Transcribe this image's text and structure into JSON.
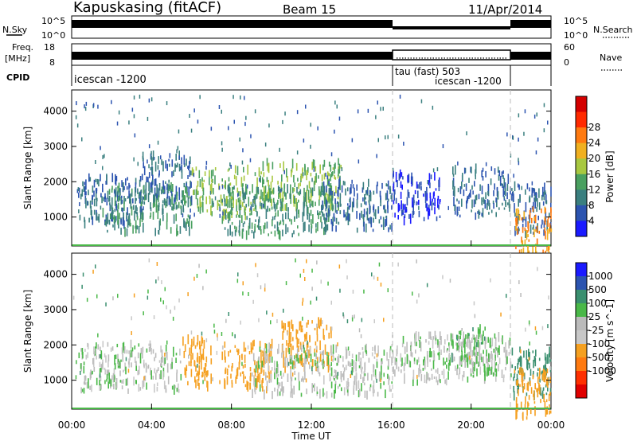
{
  "header": {
    "station": "Kapuskasing (fitACF)",
    "beam": "Beam 15",
    "date": "11/Apr/2014"
  },
  "status_panels": {
    "nsky_label": "N.Sky",
    "nsky_ticks": [
      "10^5",
      "10^0"
    ],
    "nsearch_label": "N.Search",
    "nsearch_ticks": [
      "10^5",
      "10^0"
    ],
    "freq_label": "Freq.",
    "freq_unit": "[MHz]",
    "freq_ticks": [
      "18",
      "8"
    ],
    "nave_label": "Nave",
    "nave_ticks": [
      "60",
      "0"
    ],
    "cpid_label": "CPID",
    "cpid_segments": [
      {
        "start_hour": 0,
        "end_hour": 16,
        "label": "icescan -1200"
      },
      {
        "start_hour": 16,
        "end_hour": 22,
        "label": "tau (fast) 503"
      },
      {
        "start_hour": 16,
        "end_hour": 22,
        "label": "icescan -1200"
      }
    ]
  },
  "chart_data": [
    {
      "type": "heatmap",
      "title": "",
      "xlabel": "Time UT",
      "ylabel": "Slant Range [km]",
      "xlim": [
        0,
        24
      ],
      "ylim": [
        180,
        4600
      ],
      "x_ticks": [
        "00:00",
        "04:00",
        "08:00",
        "12:00",
        "16:00",
        "20:00",
        "00:00"
      ],
      "y_ticks": [
        1000,
        2000,
        3000,
        4000
      ],
      "colorbar": {
        "label": "Power [dB]",
        "ticks": [
          4,
          8,
          12,
          16,
          20,
          24,
          28
        ],
        "colors": [
          "#1a1aff",
          "#2c54b0",
          "#3a7f7f",
          "#4aa060",
          "#a8c840",
          "#f0b020",
          "#ff7a10",
          "#ff2a00",
          "#d40000"
        ]
      },
      "regions": [
        {
          "start_hour": 0.3,
          "end_hour": 3.5,
          "range_km": 1450,
          "value": 8
        },
        {
          "start_hour": 3.5,
          "end_hour": 6.0,
          "range_km": 2100,
          "value": 8
        },
        {
          "start_hour": 1.5,
          "end_hour": 6.0,
          "range_km": 1200,
          "value": 12
        },
        {
          "start_hour": 6.0,
          "end_hour": 9.5,
          "range_km": 1700,
          "value": 16
        },
        {
          "start_hour": 9.5,
          "end_hour": 13.5,
          "range_km": 1900,
          "value": 16
        },
        {
          "start_hour": 7.5,
          "end_hour": 13.0,
          "range_km": 1150,
          "value": 12
        },
        {
          "start_hour": 12.5,
          "end_hour": 16.0,
          "range_km": 1300,
          "value": 8
        },
        {
          "start_hour": 16.0,
          "end_hour": 18.5,
          "range_km": 1550,
          "value": 4
        },
        {
          "start_hour": 19.0,
          "end_hour": 22.0,
          "range_km": 1700,
          "value": 8
        },
        {
          "start_hour": 22.0,
          "end_hour": 24.0,
          "range_km": 1200,
          "value": 8
        },
        {
          "start_hour": 22.2,
          "end_hour": 24.0,
          "range_km": 600,
          "value": 24
        }
      ]
    },
    {
      "type": "heatmap",
      "title": "",
      "xlabel": "Time UT",
      "ylabel": "Slant Range [km]",
      "xlim": [
        0,
        24
      ],
      "ylim": [
        180,
        4600
      ],
      "x_ticks": [
        "00:00",
        "04:00",
        "08:00",
        "12:00",
        "16:00",
        "20:00",
        "00:00"
      ],
      "y_ticks": [
        1000,
        2000,
        3000,
        4000
      ],
      "colorbar": {
        "label": "Velocity [m s^-1]",
        "ticks": [
          1000,
          500,
          100,
          25,
          -25,
          -100,
          -500,
          -1000
        ],
        "colors": [
          "#1a1aff",
          "#2c54b0",
          "#3a8f6f",
          "#4ab848",
          "#bbbbbb",
          "#c8c8c8",
          "#f5a020",
          "#ff7a10",
          "#ff3000",
          "#e00000"
        ]
      },
      "regions": [
        {
          "start_hour": 0.3,
          "end_hour": 5.5,
          "range_km": 1350,
          "value": 0
        },
        {
          "start_hour": 5.5,
          "end_hour": 7.0,
          "range_km": 1500,
          "value": -200
        },
        {
          "start_hour": 7.5,
          "end_hour": 10.0,
          "range_km": 1400,
          "value": -200
        },
        {
          "start_hour": 10.5,
          "end_hour": 13.0,
          "range_km": 2000,
          "value": -400
        },
        {
          "start_hour": 9.0,
          "end_hour": 16.0,
          "range_km": 1250,
          "value": 0
        },
        {
          "start_hour": 16.0,
          "end_hour": 22.0,
          "range_km": 1600,
          "value": 0
        },
        {
          "start_hour": 19.0,
          "end_hour": 21.0,
          "range_km": 1800,
          "value": 50
        },
        {
          "start_hour": 22.0,
          "end_hour": 24.0,
          "range_km": 1200,
          "value": 300
        },
        {
          "start_hour": 22.2,
          "end_hour": 24.0,
          "range_km": 600,
          "value": -300
        }
      ]
    }
  ]
}
